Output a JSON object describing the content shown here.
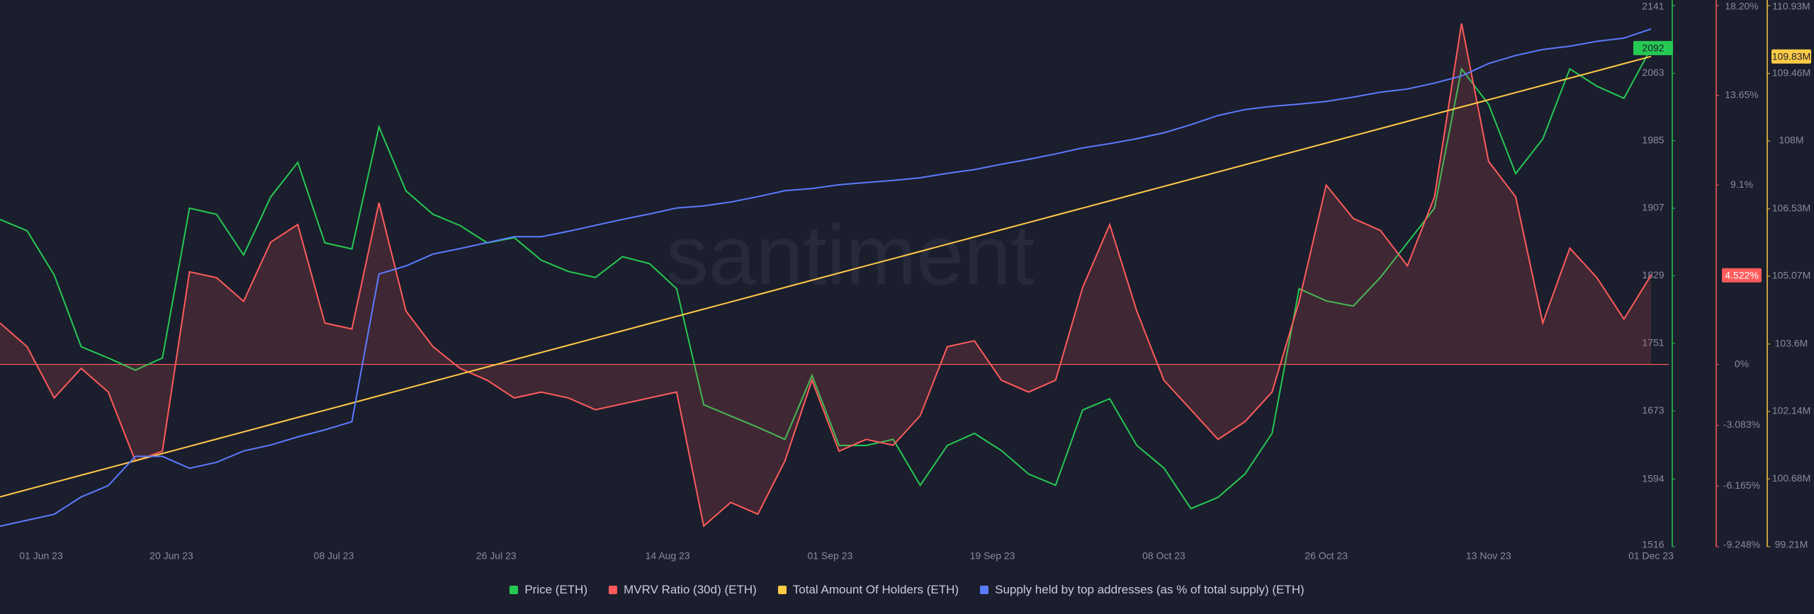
{
  "chart_data": {
    "type": "line",
    "watermark": "santiment",
    "x": [
      "2023-06-01",
      "2023-06-04",
      "2023-06-07",
      "2023-06-10",
      "2023-06-13",
      "2023-06-16",
      "2023-06-19",
      "2023-06-22",
      "2023-06-25",
      "2023-06-28",
      "2023-07-01",
      "2023-07-04",
      "2023-07-07",
      "2023-07-10",
      "2023-07-13",
      "2023-07-16",
      "2023-07-19",
      "2023-07-22",
      "2023-07-25",
      "2023-07-28",
      "2023-07-31",
      "2023-08-03",
      "2023-08-06",
      "2023-08-09",
      "2023-08-12",
      "2023-08-15",
      "2023-08-18",
      "2023-08-21",
      "2023-08-24",
      "2023-08-27",
      "2023-08-30",
      "2023-09-02",
      "2023-09-05",
      "2023-09-08",
      "2023-09-11",
      "2023-09-14",
      "2023-09-17",
      "2023-09-20",
      "2023-09-23",
      "2023-09-26",
      "2023-09-29",
      "2023-10-02",
      "2023-10-05",
      "2023-10-08",
      "2023-10-11",
      "2023-10-14",
      "2023-10-17",
      "2023-10-20",
      "2023-10-23",
      "2023-10-26",
      "2023-10-29",
      "2023-11-01",
      "2023-11-04",
      "2023-11-07",
      "2023-11-10",
      "2023-11-13",
      "2023-11-16",
      "2023-11-19",
      "2023-11-22",
      "2023-11-25",
      "2023-11-28",
      "2023-12-01"
    ],
    "xlim": [
      "2023-06-01",
      "2023-12-01"
    ],
    "xticks": [
      {
        "value": "2023-06-01",
        "label": "01 Jun 23"
      },
      {
        "value": "2023-06-20",
        "label": "20 Jun 23"
      },
      {
        "value": "2023-07-08",
        "label": "08 Jul 23"
      },
      {
        "value": "2023-07-26",
        "label": "26 Jul 23"
      },
      {
        "value": "2023-08-14",
        "label": "14 Aug 23"
      },
      {
        "value": "2023-09-01",
        "label": "01 Sep 23"
      },
      {
        "value": "2023-09-19",
        "label": "19 Sep 23"
      },
      {
        "value": "2023-10-08",
        "label": "08 Oct 23"
      },
      {
        "value": "2023-10-26",
        "label": "26 Oct 23"
      },
      {
        "value": "2023-11-13",
        "label": "13 Nov 23"
      },
      {
        "value": "2023-12-01",
        "label": "01 Dec 23"
      }
    ],
    "ylim": [
      1516,
      2141
    ],
    "yticks": [
      1516,
      1594,
      1673,
      1751,
      1829,
      1907,
      1985,
      2063,
      2141
    ],
    "y2lim": [
      -9.248,
      18.2
    ],
    "y2ticks": [
      {
        "value": -9.248,
        "label": "-9.248%"
      },
      {
        "value": -6.165,
        "label": "-6.165%"
      },
      {
        "value": -3.083,
        "label": "-3.083%"
      },
      {
        "value": 0,
        "label": "0%"
      },
      {
        "value": 9.1,
        "label": "9.1%"
      },
      {
        "value": 13.65,
        "label": "13.65%"
      },
      {
        "value": 18.2,
        "label": "18.20%"
      }
    ],
    "y3lim": [
      99210000,
      110930000
    ],
    "y3ticks": [
      {
        "value": 99210000,
        "label": "99.21M"
      },
      {
        "value": 100680000,
        "label": "100.68M"
      },
      {
        "value": 102140000,
        "label": "102.14M"
      },
      {
        "value": 103600000,
        "label": "103.6M"
      },
      {
        "value": 105070000,
        "label": "105.07M"
      },
      {
        "value": 106530000,
        "label": "106.53M"
      },
      {
        "value": 108000000,
        "label": "108M"
      },
      {
        "value": 109460000,
        "label": "109.46M"
      },
      {
        "value": 110930000,
        "label": "110.93M"
      }
    ],
    "y4lim": [
      69.0,
      70.0
    ],
    "series": [
      {
        "name": "Price (ETH)",
        "color": "#26c953",
        "axis": "y",
        "values": [
          1894,
          1881,
          1830,
          1747,
          1734,
          1720,
          1734,
          1907,
          1900,
          1853,
          1920,
          1960,
          1867,
          1860,
          2001,
          1927,
          1900,
          1887,
          1867,
          1873,
          1847,
          1834,
          1827,
          1851,
          1843,
          1814,
          1680,
          1667,
          1654,
          1640,
          1714,
          1633,
          1633,
          1640,
          1587,
          1633,
          1647,
          1627,
          1600,
          1587,
          1674,
          1687,
          1633,
          1607,
          1560,
          1573,
          1600,
          1647,
          1814,
          1800,
          1794,
          1827,
          1867,
          1907,
          2068,
          2027,
          1947,
          1987,
          2068,
          2048,
          2034,
          2092
        ]
      },
      {
        "name": "MVRV Ratio (30d) (ETH)",
        "color": "#ff5b5b",
        "axis": "y2",
        "area": true,
        "badge": "4.522%",
        "values": [
          2.1,
          0.9,
          -1.7,
          -0.2,
          -1.4,
          -4.9,
          -4.4,
          4.7,
          4.4,
          3.2,
          6.2,
          7.1,
          2.1,
          1.8,
          8.2,
          2.7,
          0.9,
          -0.2,
          -0.8,
          -1.7,
          -1.4,
          -1.7,
          -2.3,
          -2.0,
          -1.7,
          -1.4,
          -8.2,
          -7.0,
          -7.6,
          -4.9,
          -0.8,
          -4.4,
          -3.8,
          -4.1,
          -2.6,
          0.9,
          1.2,
          -0.8,
          -1.4,
          -0.8,
          3.9,
          7.1,
          2.7,
          -0.8,
          -2.3,
          -3.8,
          -2.9,
          -1.4,
          3.2,
          9.1,
          7.4,
          6.8,
          5.0,
          8.5,
          17.3,
          10.3,
          8.5,
          2.1,
          5.9,
          4.4,
          2.3,
          4.522
        ]
      },
      {
        "name": "Total Amount Of Holders (ETH)",
        "color": "#ffcb47",
        "axis": "y3",
        "badge": "109.83M",
        "values": [
          100290000,
          100446400,
          100602800,
          100759200,
          100915600,
          101072000,
          101228400,
          101384800,
          101541200,
          101697600,
          101854000,
          102010400,
          102166800,
          102323200,
          102479600,
          102636000,
          102792400,
          102948800,
          103105200,
          103261600,
          103418000,
          103574400,
          103730800,
          103887200,
          104043600,
          104200000,
          104356400,
          104512800,
          104669200,
          104825600,
          104982000,
          105138400,
          105294800,
          105451200,
          105607600,
          105764000,
          105920400,
          106076800,
          106233200,
          106389600,
          106546000,
          106702400,
          106858800,
          107015200,
          107171600,
          107328000,
          107484400,
          107640800,
          107797200,
          107953600,
          108110000,
          108266400,
          108422800,
          108579200,
          108735600,
          108892000,
          109048400,
          109204800,
          109361200,
          109517600,
          109674000,
          109830000
        ]
      },
      {
        "name": "Supply held by top addresses (as % of total supply) (ETH)",
        "color": "#5b7bff",
        "axis": "y4",
        "values": [
          69.038,
          69.049,
          69.06,
          69.092,
          69.113,
          69.167,
          69.167,
          69.145,
          69.156,
          69.177,
          69.188,
          69.203,
          69.216,
          69.231,
          69.504,
          69.519,
          69.541,
          69.551,
          69.562,
          69.573,
          69.573,
          69.583,
          69.594,
          69.605,
          69.615,
          69.626,
          69.63,
          69.637,
          69.647,
          69.658,
          69.662,
          69.669,
          69.673,
          69.677,
          69.682,
          69.69,
          69.697,
          69.707,
          69.716,
          69.726,
          69.737,
          69.745,
          69.754,
          69.765,
          69.78,
          69.797,
          69.808,
          69.814,
          69.818,
          69.823,
          69.831,
          69.84,
          69.846,
          69.857,
          69.87,
          69.893,
          69.908,
          69.919,
          69.925,
          69.934,
          69.94,
          69.957
        ]
      }
    ]
  }
}
